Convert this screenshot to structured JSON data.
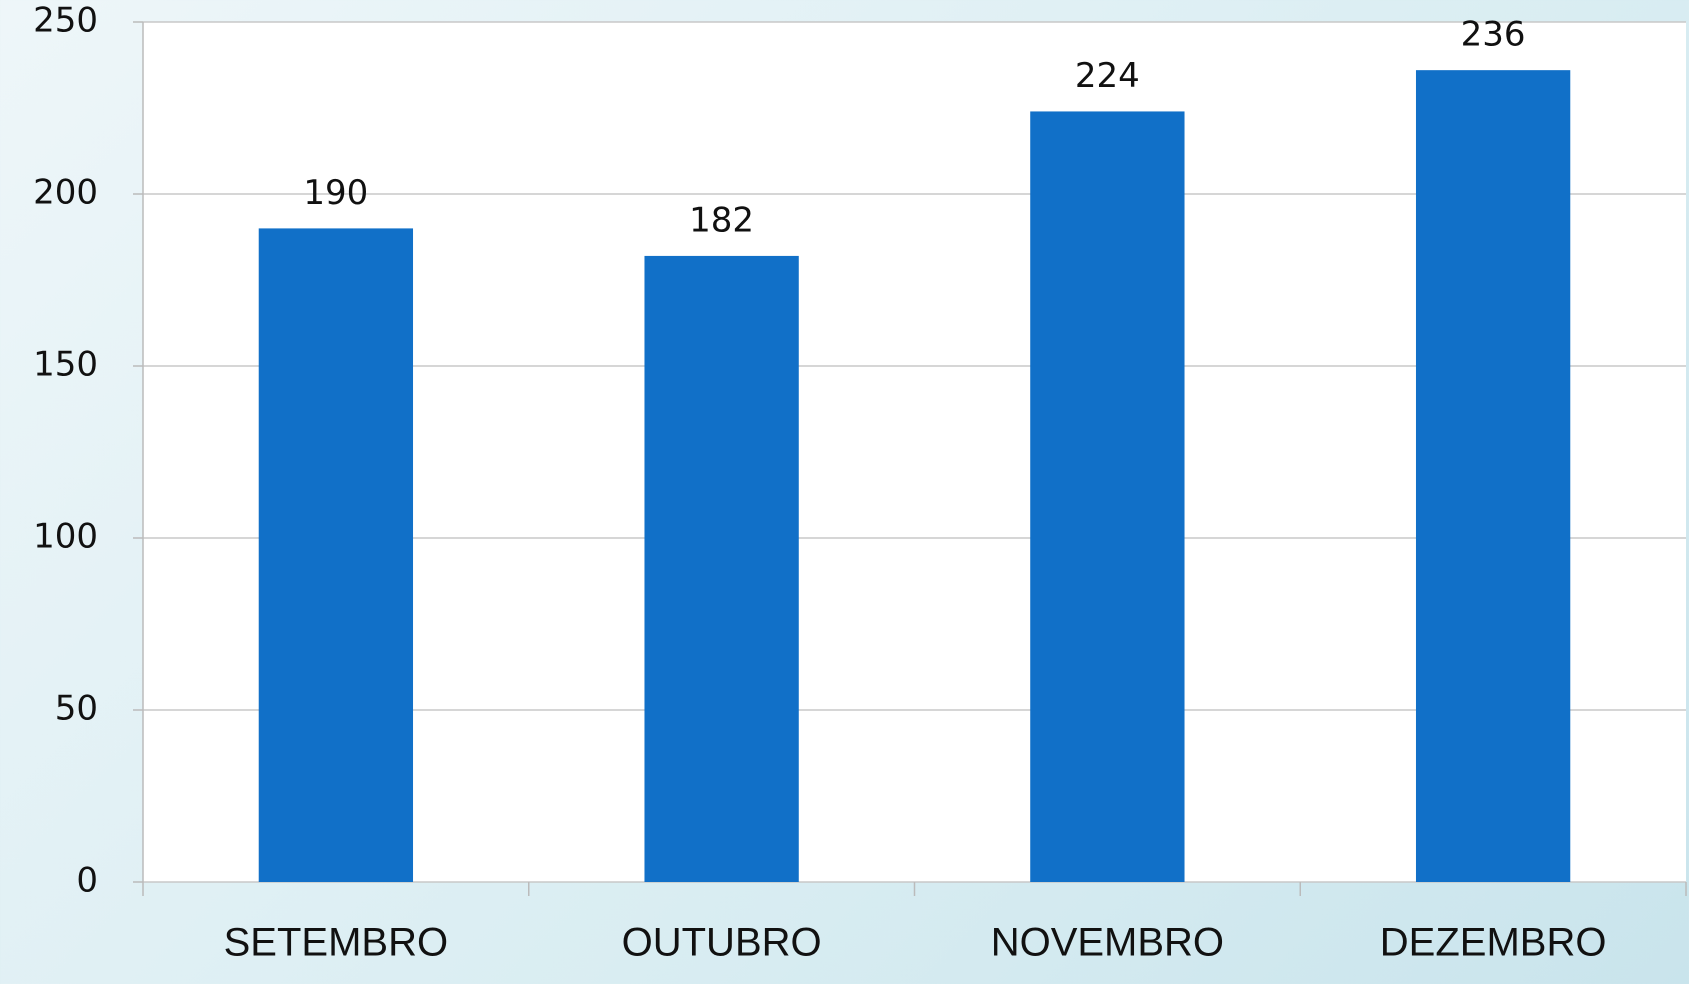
{
  "chart_data": {
    "type": "bar",
    "categories": [
      "SETEMBRO",
      "OUTUBRO",
      "NOVEMBRO",
      "DEZEMBRO"
    ],
    "values": [
      190,
      182,
      224,
      236
    ],
    "color": "#1170c8",
    "ylim": [
      0,
      250
    ],
    "yticks": [
      0,
      50,
      100,
      150,
      200,
      250
    ],
    "grid": true
  }
}
